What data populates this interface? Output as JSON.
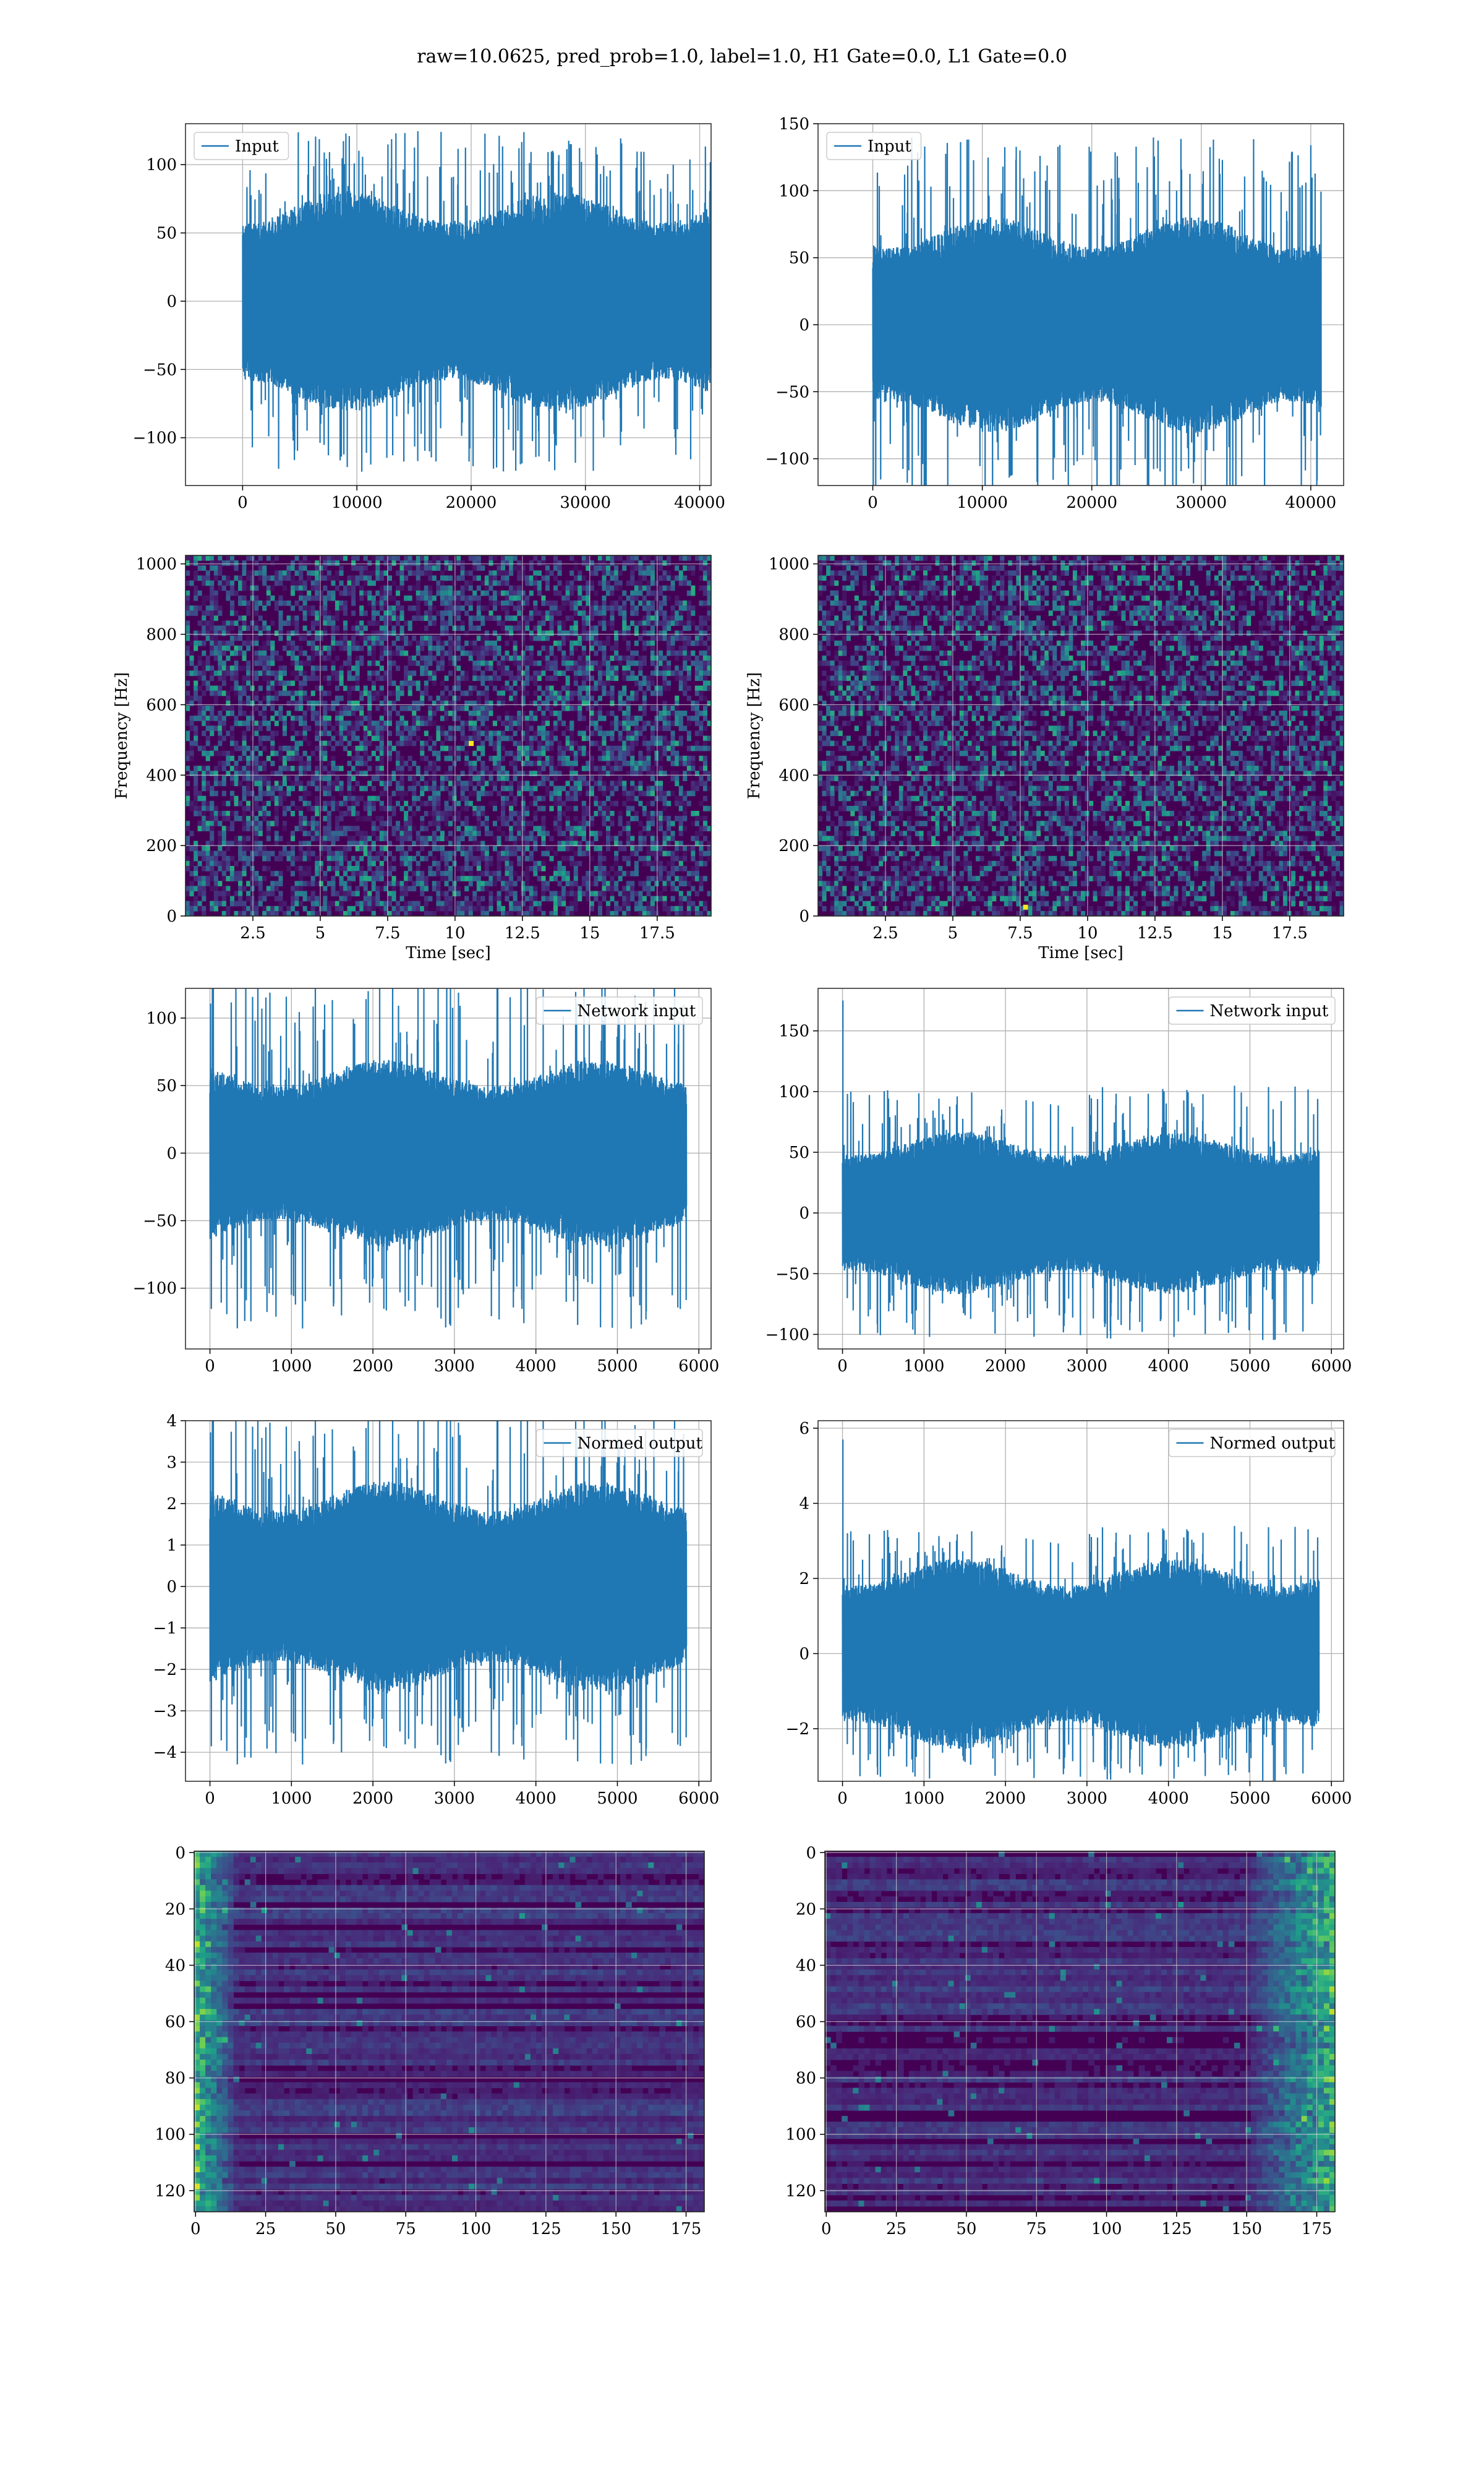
{
  "suptitle": "raw=10.0625, pred_prob=1.0, label=1.0, H1 Gate=0.0, L1 Gate=0.0",
  "colors": {
    "line": "#1f77b4",
    "grid": "#b0b0b0",
    "spine": "#000000",
    "viridis_low": "#440154",
    "viridis_mid": "#21918c",
    "viridis_high": "#fde725"
  },
  "chart_data": [
    {
      "id": "input-h1",
      "type": "line",
      "legend": "Input",
      "xlim": [
        -5000,
        41000
      ],
      "ylim": [
        -135,
        130
      ],
      "xticks": [
        0,
        10000,
        20000,
        30000,
        40000
      ],
      "yticks": [
        -100,
        -50,
        0,
        50,
        100
      ],
      "xlabel": "",
      "ylabel": "",
      "noise": {
        "n_samples": 40960,
        "typical_amplitude": 70,
        "peak_amplitude": 125,
        "seed": 11
      }
    },
    {
      "id": "input-l1",
      "type": "line",
      "legend": "Input",
      "xlim": [
        -5000,
        43000
      ],
      "ylim": [
        -120,
        150
      ],
      "xticks": [
        0,
        10000,
        20000,
        30000,
        40000
      ],
      "yticks": [
        -100,
        -50,
        0,
        50,
        100,
        150
      ],
      "xlabel": "",
      "ylabel": "",
      "noise": {
        "n_samples": 40960,
        "typical_amplitude": 70,
        "peak_amplitude": 140,
        "seed": 23
      }
    },
    {
      "id": "spectrogram-h1",
      "type": "heatmap",
      "xlim": [
        0,
        19.5
      ],
      "ylim": [
        0,
        1024
      ],
      "xticks": [
        2.5,
        5.0,
        7.5,
        10.0,
        12.5,
        15.0,
        17.5
      ],
      "yticks": [
        0,
        200,
        400,
        600,
        800,
        1000
      ],
      "xlabel": "Time [sec]",
      "ylabel": "Frequency [Hz]",
      "grid": true,
      "colormap": "viridis",
      "seed": 37,
      "bright_spots": [
        {
          "x": 10.6,
          "y": 490
        }
      ]
    },
    {
      "id": "spectrogram-l1",
      "type": "heatmap",
      "xlim": [
        0,
        19.5
      ],
      "ylim": [
        0,
        1024
      ],
      "xticks": [
        2.5,
        5.0,
        7.5,
        10.0,
        12.5,
        15.0,
        17.5
      ],
      "yticks": [
        0,
        200,
        400,
        600,
        800,
        1000
      ],
      "xlabel": "Time [sec]",
      "ylabel": "Frequency [Hz]",
      "grid": true,
      "colormap": "viridis",
      "seed": 41,
      "bright_spots": [
        {
          "x": 7.7,
          "y": 25
        }
      ]
    },
    {
      "id": "network-input-h1",
      "type": "line",
      "legend": "Network input",
      "xlim": [
        -300,
        6150
      ],
      "ylim": [
        -145,
        122
      ],
      "xticks": [
        0,
        1000,
        2000,
        3000,
        4000,
        5000,
        6000
      ],
      "yticks": [
        -100,
        -50,
        0,
        50,
        100
      ],
      "xlabel": "",
      "ylabel": "",
      "noise": {
        "n_samples": 5850,
        "typical_amplitude": 60,
        "peak_amplitude": 130,
        "seed": 53
      }
    },
    {
      "id": "network-input-l1",
      "type": "line",
      "legend": "Network input",
      "xlim": [
        -300,
        6150
      ],
      "ylim": [
        -112,
        185
      ],
      "xticks": [
        0,
        1000,
        2000,
        3000,
        4000,
        5000,
        6000
      ],
      "yticks": [
        -100,
        -50,
        0,
        50,
        100,
        150
      ],
      "xlabel": "",
      "ylabel": "",
      "noise": {
        "n_samples": 5850,
        "typical_amplitude": 58,
        "peak_amplitude": 105,
        "seed": 61
      },
      "spike": {
        "x": 5,
        "y": 175
      }
    },
    {
      "id": "normed-output-h1",
      "type": "line",
      "legend": "Normed output",
      "xlim": [
        -300,
        6150
      ],
      "ylim": [
        -4.7,
        4.0
      ],
      "xticks": [
        0,
        1000,
        2000,
        3000,
        4000,
        5000,
        6000
      ],
      "yticks": [
        -4,
        -3,
        -2,
        -1,
        0,
        1,
        2,
        3,
        4
      ],
      "xlabel": "",
      "ylabel": "",
      "noise": {
        "n_samples": 5850,
        "typical_amplitude": 2.2,
        "peak_amplitude": 4.3,
        "seed": 53
      }
    },
    {
      "id": "normed-output-l1",
      "type": "line",
      "legend": "Normed output",
      "xlim": [
        -300,
        6150
      ],
      "ylim": [
        -3.4,
        6.2
      ],
      "xticks": [
        0,
        1000,
        2000,
        3000,
        4000,
        5000,
        6000
      ],
      "yticks": [
        -2,
        0,
        2,
        4,
        6
      ],
      "xlabel": "",
      "ylabel": "",
      "noise": {
        "n_samples": 5850,
        "typical_amplitude": 2.2,
        "peak_amplitude": 3.4,
        "seed": 61
      },
      "spike": {
        "x": 5,
        "y": 5.7
      }
    },
    {
      "id": "feature-map-h1",
      "type": "heatmap",
      "xlim": [
        -0.5,
        181.5
      ],
      "ylim": [
        127.5,
        -0.5
      ],
      "y_inverted": true,
      "xticks": [
        0,
        25,
        50,
        75,
        100,
        125,
        150,
        175
      ],
      "yticks": [
        0,
        20,
        40,
        60,
        80,
        100,
        120
      ],
      "xlabel": "",
      "ylabel": "",
      "grid": true,
      "colormap": "viridis",
      "seed": 71,
      "bright_region": "left"
    },
    {
      "id": "feature-map-l1",
      "type": "heatmap",
      "xlim": [
        -0.5,
        181.5
      ],
      "ylim": [
        127.5,
        -0.5
      ],
      "y_inverted": true,
      "xticks": [
        0,
        25,
        50,
        75,
        100,
        125,
        150,
        175
      ],
      "yticks": [
        0,
        20,
        40,
        60,
        80,
        100,
        120
      ],
      "xlabel": "",
      "ylabel": "",
      "grid": true,
      "colormap": "viridis",
      "seed": 79,
      "bright_region": "right"
    }
  ]
}
